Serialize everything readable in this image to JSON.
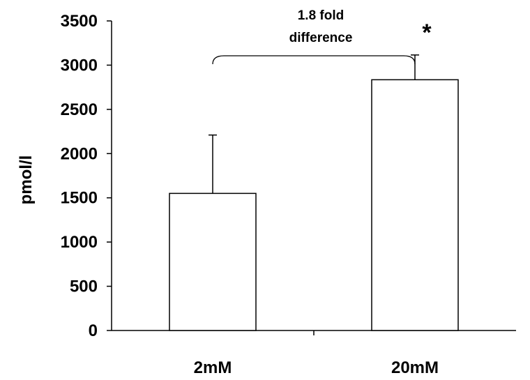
{
  "chart_data": {
    "type": "bar",
    "categories": [
      "2mM",
      "20mM"
    ],
    "values": [
      1550,
      2835
    ],
    "errors": [
      660,
      280
    ],
    "ylabel": "pmol/l",
    "ylim": [
      0,
      3500
    ],
    "yticks": [
      0,
      500,
      1000,
      1500,
      2000,
      2500,
      3000,
      3500
    ],
    "grid": false,
    "annotations": {
      "bracket_line1": "1.8 fold",
      "bracket_line2": "difference",
      "significance": "*"
    },
    "colors": {
      "bar_fill": "#ffffff",
      "bar_stroke": "#000000"
    }
  }
}
